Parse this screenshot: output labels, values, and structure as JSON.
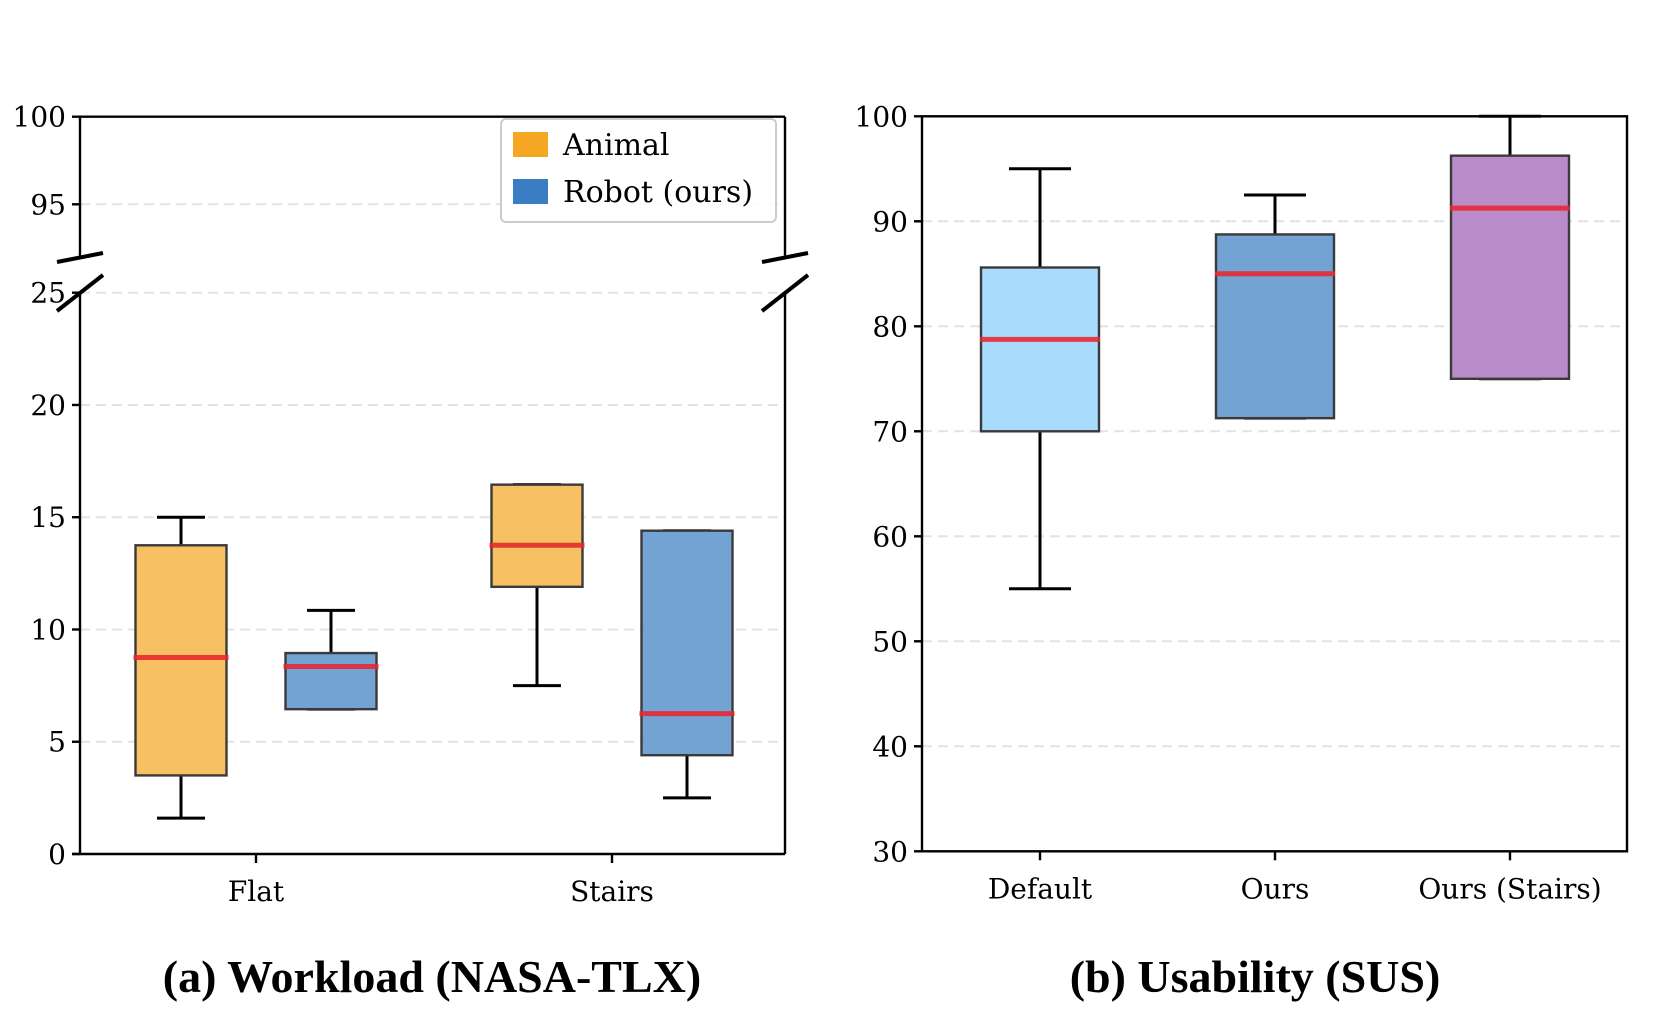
{
  "chart_data": [
    {
      "type": "box",
      "panel_id": "workload",
      "title": "(a) Workload (NASA-TLX)",
      "xlabel": "",
      "ylabel": "",
      "broken_axis": true,
      "ylim_lower": [
        0,
        25
      ],
      "ylim_upper": [
        92,
        100
      ],
      "yticks_lower": [
        0,
        5,
        10,
        15,
        20,
        25
      ],
      "yticks_upper": [
        95,
        100
      ],
      "grid": "horizontal dashed",
      "categories": [
        "Flat",
        "Stairs"
      ],
      "legend": {
        "placement": "top-right",
        "entries": [
          {
            "label": "Animal",
            "color": "#F5A623"
          },
          {
            "label": "Robot (ours)",
            "color": "#3A7DC2"
          }
        ]
      },
      "series": [
        {
          "name": "Animal",
          "fill": "#F6C063",
          "boxes": [
            {
              "category": "Flat",
              "whislo": 1.6,
              "q1": 3.5,
              "med": 8.75,
              "q3": 13.75,
              "whishi": 15.0
            },
            {
              "category": "Stairs",
              "whislo": 7.5,
              "q1": 11.9,
              "med": 13.75,
              "q3": 16.45,
              "whishi": 16.45
            }
          ]
        },
        {
          "name": "Robot (ours)",
          "fill": "#72A3D2",
          "boxes": [
            {
              "category": "Flat",
              "whislo": 6.45,
              "q1": 6.45,
              "med": 8.35,
              "q3": 8.95,
              "whishi": 10.85
            },
            {
              "category": "Stairs",
              "whislo": 2.5,
              "q1": 4.4,
              "med": 6.25,
              "q3": 14.4,
              "whishi": 14.4
            }
          ]
        }
      ],
      "median_color": "#E8333F"
    },
    {
      "type": "box",
      "panel_id": "usability",
      "title": "(b) Usability (SUS)",
      "xlabel": "",
      "ylabel": "",
      "ylim": [
        30,
        100
      ],
      "yticks": [
        30,
        40,
        50,
        60,
        70,
        80,
        90,
        100
      ],
      "grid": "horizontal dashed",
      "categories": [
        "Default",
        "Ours",
        "Ours (Stairs)"
      ],
      "boxes": [
        {
          "category": "Default",
          "fill": "#A8DBFC",
          "whislo": 55.0,
          "q1": 70.0,
          "med": 78.75,
          "q3": 85.6,
          "whishi": 95.0
        },
        {
          "category": "Ours",
          "fill": "#72A3D2",
          "whislo": 71.25,
          "q1": 71.25,
          "med": 85.0,
          "q3": 88.75,
          "whishi": 92.5
        },
        {
          "category": "Ours (Stairs)",
          "fill": "#B98BC9",
          "whislo": 75.0,
          "q1": 75.0,
          "med": 91.25,
          "q3": 96.25,
          "whishi": 100.0
        }
      ],
      "median_color": "#E8333F"
    }
  ]
}
